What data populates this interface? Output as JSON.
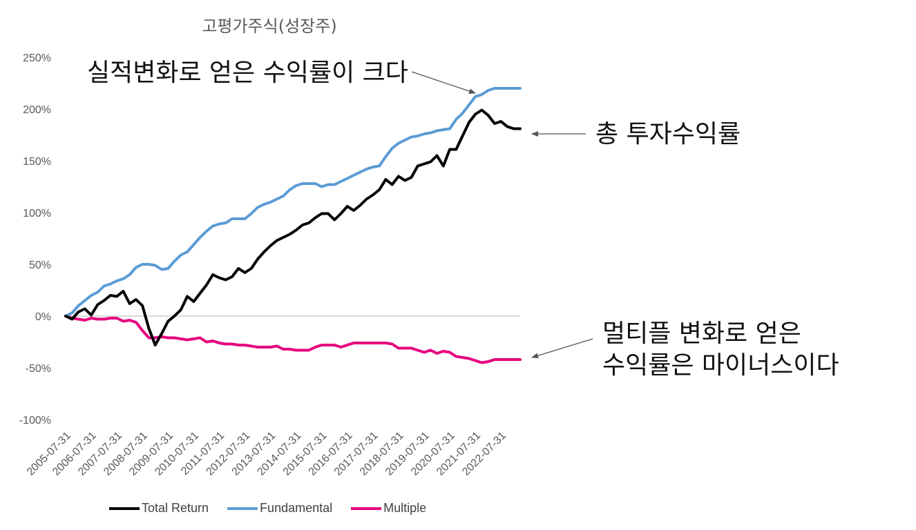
{
  "chart_data": {
    "type": "line",
    "title": "고평가주식(성장주)",
    "y_tick_labels": [
      "250%",
      "200%",
      "150%",
      "100%",
      "50%",
      "0%",
      "-50%",
      "-100%"
    ],
    "ylim": [
      -100,
      250
    ],
    "x_tick_labels": [
      "2005-07-31",
      "2006-07-31",
      "2007-07-31",
      "2008-07-31",
      "2009-07-31",
      "2010-07-31",
      "2011-07-31",
      "2012-07-31",
      "2013-07-31",
      "2014-07-31",
      "2015-07-31",
      "2016-07-31",
      "2017-07-31",
      "2018-07-31",
      "2019-07-31",
      "2020-07-31",
      "2021-07-31",
      "2022-07-31"
    ],
    "x": [
      2005.58,
      2005.83,
      2006.08,
      2006.33,
      2006.58,
      2006.83,
      2007.08,
      2007.33,
      2007.58,
      2007.83,
      2008.08,
      2008.33,
      2008.58,
      2008.83,
      2009.08,
      2009.33,
      2009.58,
      2009.83,
      2010.08,
      2010.33,
      2010.58,
      2010.83,
      2011.08,
      2011.33,
      2011.58,
      2011.83,
      2012.08,
      2012.33,
      2012.58,
      2012.83,
      2013.08,
      2013.33,
      2013.58,
      2013.83,
      2014.08,
      2014.33,
      2014.58,
      2014.83,
      2015.08,
      2015.33,
      2015.58,
      2015.83,
      2016.08,
      2016.33,
      2016.58,
      2016.83,
      2017.08,
      2017.33,
      2017.58,
      2017.83,
      2018.08,
      2018.33,
      2018.58,
      2018.83,
      2019.08,
      2019.33,
      2019.58,
      2019.83,
      2020.08,
      2020.33,
      2020.58,
      2020.83,
      2021.08,
      2021.33,
      2021.58,
      2021.83,
      2022.08,
      2022.33,
      2022.58,
      2022.83,
      2023.08,
      2023.33
    ],
    "series": [
      {
        "name": "Total Return",
        "color": "#000000",
        "values": [
          0,
          -3,
          4,
          7,
          1,
          11,
          15,
          20,
          19,
          24,
          12,
          16,
          10,
          -12,
          -28,
          -17,
          -5,
          0,
          6,
          19,
          14,
          22,
          30,
          40,
          37,
          35,
          38,
          46,
          42,
          46,
          55,
          62,
          68,
          73,
          76,
          79,
          83,
          88,
          90,
          95,
          99,
          99,
          93,
          99,
          106,
          102,
          107,
          113,
          117,
          122,
          132,
          127,
          135,
          131,
          134,
          145,
          147,
          149,
          155,
          145,
          161,
          161,
          174,
          187,
          195,
          199,
          194,
          186,
          188,
          183,
          181,
          181
        ]
      },
      {
        "name": "Fundamental",
        "color": "#5b9bd5",
        "values": [
          0,
          3,
          10,
          15,
          20,
          23,
          29,
          31,
          34,
          36,
          40,
          47,
          50,
          50,
          49,
          45,
          46,
          53,
          59,
          62,
          69,
          76,
          82,
          87,
          89,
          90,
          94,
          94,
          94,
          99,
          105,
          108,
          110,
          113,
          116,
          122,
          126,
          128,
          128,
          128,
          125,
          127,
          127,
          130,
          133,
          136,
          139,
          142,
          144,
          145,
          154,
          162,
          167,
          170,
          173,
          174,
          176,
          177,
          179,
          180,
          181,
          190,
          196,
          204,
          212,
          214,
          218,
          220,
          220,
          220,
          220,
          220
        ]
      },
      {
        "name": "Multiple",
        "color": "#e6007e",
        "values": [
          0,
          -2,
          -3,
          -4,
          -2,
          -3,
          -3,
          -2,
          -2,
          -5,
          -4,
          -6,
          -14,
          -21,
          -21,
          -20,
          -21,
          -21,
          -22,
          -23,
          -22,
          -21,
          -25,
          -24,
          -26,
          -27,
          -27,
          -28,
          -28,
          -29,
          -30,
          -30,
          -30,
          -29,
          -32,
          -32,
          -33,
          -33,
          -33,
          -30,
          -28,
          -28,
          -28,
          -30,
          -28,
          -26,
          -26,
          -26,
          -26,
          -26,
          -26,
          -27,
          -31,
          -31,
          -31,
          -33,
          -35,
          -33,
          -36,
          -34,
          -35,
          -39,
          -40,
          -41,
          -43,
          -45,
          -44,
          -42,
          -42,
          -42,
          -42,
          -42
        ]
      }
    ],
    "legend_position": "bottom",
    "grid": false
  },
  "annotations": {
    "fundamental_note": "실적변화로 얻은 수익률이 크다",
    "total_note": "총 투자수익률",
    "multiple_note_line1": "멀티플 변화로 얻은",
    "multiple_note_line2": "수익률은 마이너스이다"
  },
  "legend": {
    "items": [
      "Total Return",
      "Fundamental",
      "Multiple"
    ]
  }
}
